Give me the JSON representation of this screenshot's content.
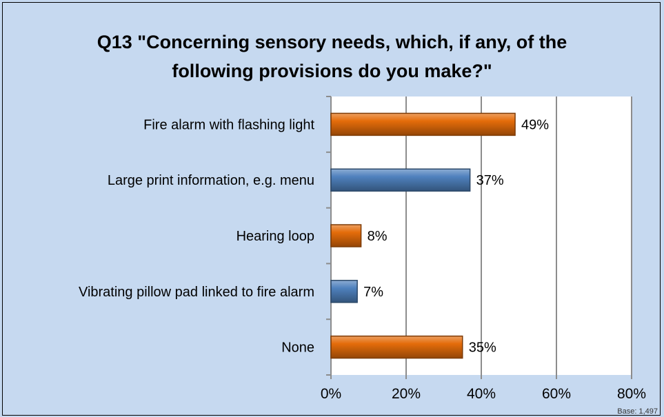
{
  "chart_data": {
    "type": "bar",
    "orientation": "horizontal",
    "title_lines": [
      "Q13 \"Concerning sensory needs, which, if any, of the",
      "following provisions do you make?\""
    ],
    "categories": [
      "Fire alarm with flashing light",
      "Large print information,  e.g. menu",
      "Hearing loop",
      "Vibrating pillow pad linked to fire alarm",
      "None"
    ],
    "values": [
      49,
      37,
      8,
      7,
      35
    ],
    "value_labels": [
      "49%",
      "37%",
      "8%",
      "7%",
      "35%"
    ],
    "bar_colors": [
      "#e46c0a",
      "#4f81bd",
      "#e46c0a",
      "#4f81bd",
      "#e46c0a"
    ],
    "x_ticks": [
      0,
      20,
      40,
      60,
      80
    ],
    "x_tick_labels": [
      "0%",
      "20%",
      "40%",
      "60%",
      "80%"
    ],
    "xlim": [
      0,
      80
    ],
    "grid": true,
    "xlabel": "",
    "ylabel": ""
  },
  "footnote": "Base: 1,497"
}
